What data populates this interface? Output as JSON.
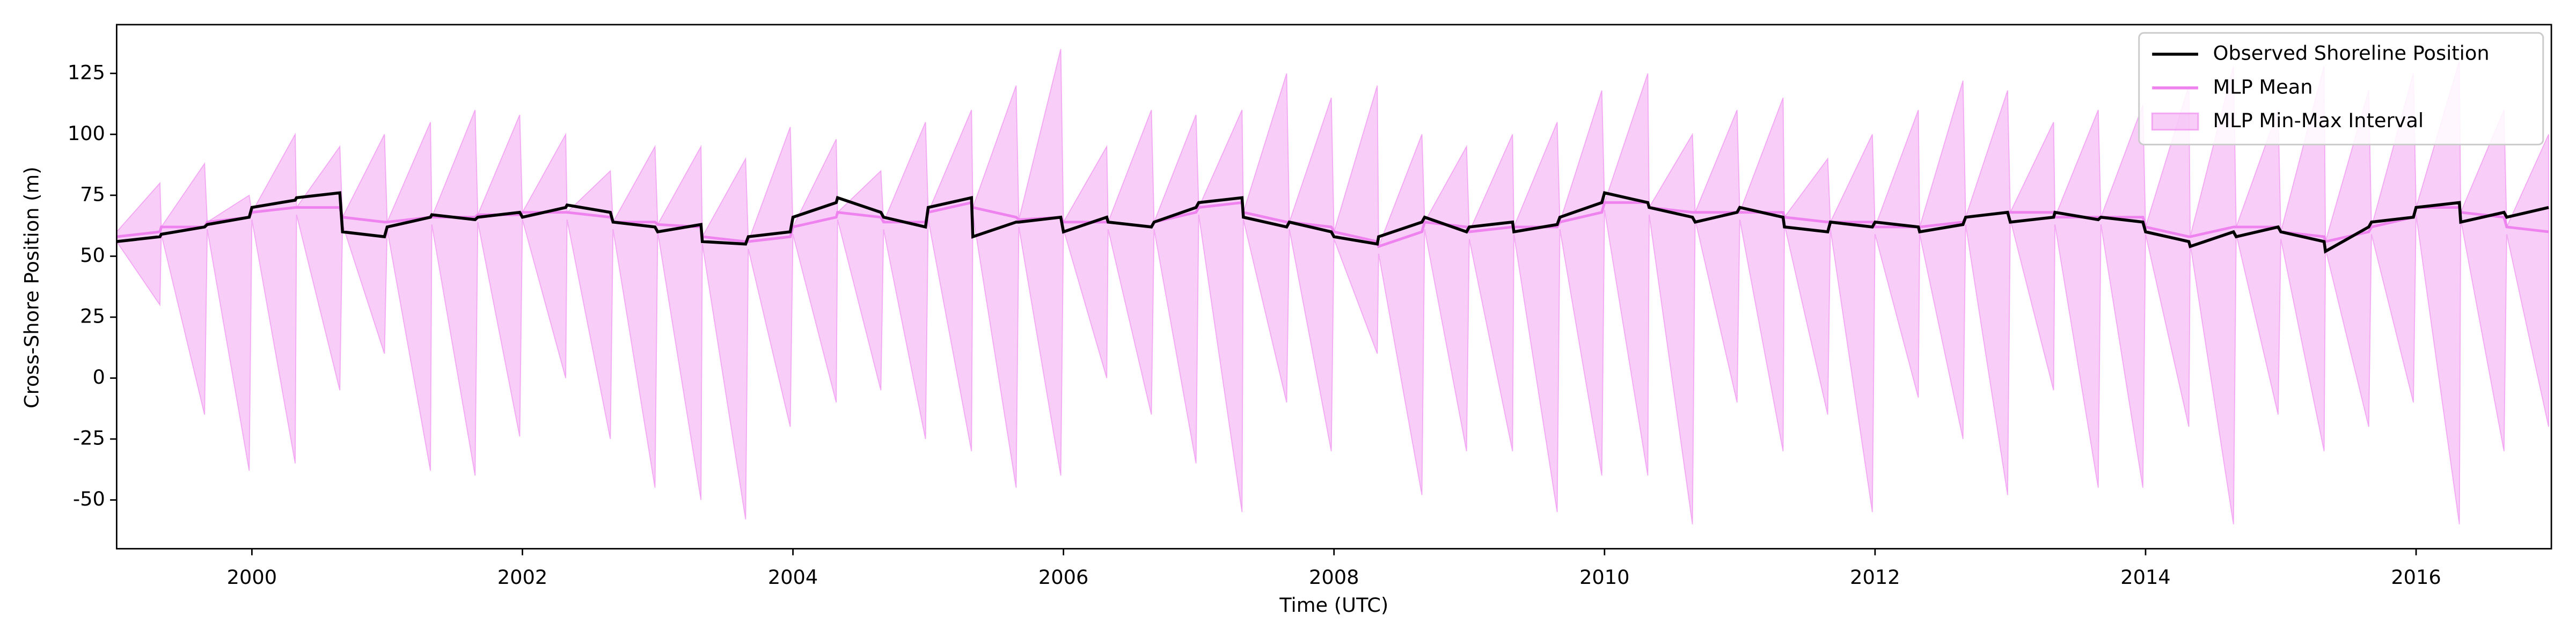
{
  "chart_data": {
    "type": "line",
    "xlabel": "Time (UTC)",
    "ylabel": "Cross-Shore Position (m)",
    "x": [
      1999.0,
      1999.32,
      1999.33,
      1999.65,
      1999.67,
      1999.98,
      2000.0,
      2000.32,
      2000.33,
      2000.65,
      2000.67,
      2000.98,
      2001.0,
      2001.32,
      2001.33,
      2001.65,
      2001.67,
      2001.98,
      2002.0,
      2002.32,
      2002.33,
      2002.65,
      2002.67,
      2002.98,
      2003.0,
      2003.32,
      2003.33,
      2003.65,
      2003.67,
      2003.98,
      2004.0,
      2004.32,
      2004.33,
      2004.65,
      2004.67,
      2004.98,
      2005.0,
      2005.32,
      2005.33,
      2005.65,
      2005.67,
      2005.98,
      2006.0,
      2006.32,
      2006.33,
      2006.65,
      2006.67,
      2006.98,
      2007.0,
      2007.32,
      2007.33,
      2007.65,
      2007.67,
      2007.98,
      2008.0,
      2008.32,
      2008.33,
      2008.65,
      2008.67,
      2008.98,
      2009.0,
      2009.32,
      2009.33,
      2009.65,
      2009.67,
      2009.98,
      2010.0,
      2010.32,
      2010.33,
      2010.65,
      2010.67,
      2010.98,
      2011.0,
      2011.32,
      2011.33,
      2011.65,
      2011.67,
      2011.98,
      2012.0,
      2012.32,
      2012.33,
      2012.65,
      2012.67,
      2012.98,
      2013.0,
      2013.32,
      2013.33,
      2013.65,
      2013.67,
      2013.98,
      2014.0,
      2014.32,
      2014.33,
      2014.65,
      2014.67,
      2014.98,
      2015.0,
      2015.32,
      2015.33,
      2015.65,
      2015.67,
      2015.98,
      2016.0,
      2016.32,
      2016.33,
      2016.65,
      2016.67,
      2016.98
    ],
    "interval": {
      "name": "MLP Min-Max Interval",
      "color": "#ee82ee",
      "upper": [
        60,
        80,
        62,
        88,
        64,
        75,
        68,
        100,
        70,
        95,
        66,
        100,
        64,
        105,
        66,
        110,
        67,
        108,
        68,
        100,
        68,
        85,
        64,
        95,
        63,
        95,
        58,
        90,
        56,
        103,
        62,
        98,
        68,
        85,
        64,
        105,
        68,
        110,
        70,
        120,
        65,
        135,
        64,
        95,
        64,
        110,
        64,
        108,
        70,
        110,
        68,
        125,
        64,
        115,
        60,
        120,
        54,
        100,
        64,
        95,
        60,
        100,
        62,
        105,
        64,
        118,
        72,
        125,
        70,
        100,
        68,
        110,
        68,
        115,
        66,
        90,
        64,
        100,
        62,
        110,
        62,
        122,
        66,
        118,
        68,
        105,
        66,
        110,
        66,
        112,
        62,
        120,
        58,
        128,
        62,
        110,
        60,
        128,
        56,
        118,
        62,
        125,
        70,
        130,
        68,
        110,
        62,
        100
      ],
      "lower": [
        56,
        30,
        59,
        -15,
        61,
        -38,
        65,
        -35,
        67,
        -5,
        63,
        10,
        61,
        -38,
        63,
        -40,
        64,
        -24,
        65,
        0,
        65,
        -25,
        61,
        -45,
        60,
        -50,
        55,
        -58,
        53,
        -20,
        59,
        -10,
        65,
        -5,
        61,
        -25,
        65,
        -30,
        67,
        -45,
        62,
        -40,
        61,
        0,
        61,
        -15,
        61,
        -35,
        67,
        -55,
        65,
        -10,
        61,
        -30,
        57,
        10,
        51,
        -48,
        61,
        -30,
        57,
        -30,
        59,
        -55,
        61,
        -40,
        69,
        -40,
        67,
        -60,
        65,
        -10,
        65,
        -30,
        63,
        -15,
        61,
        -55,
        59,
        -8,
        59,
        -25,
        63,
        -48,
        65,
        -5,
        63,
        -45,
        63,
        -45,
        59,
        -20,
        55,
        -60,
        59,
        -15,
        57,
        -30,
        53,
        -20,
        59,
        -10,
        67,
        -60,
        65,
        -30,
        59,
        -20
      ]
    },
    "series": [
      {
        "name": "Observed Shoreline Position",
        "color": "#000000",
        "values": [
          56,
          58,
          59,
          62,
          63,
          66,
          70,
          73,
          74,
          76,
          60,
          58,
          62,
          66,
          67,
          65,
          66,
          68,
          66,
          70,
          71,
          68,
          64,
          62,
          60,
          63,
          56,
          55,
          58,
          60,
          66,
          72,
          74,
          68,
          66,
          62,
          70,
          74,
          58,
          64,
          64,
          66,
          60,
          66,
          64,
          62,
          64,
          70,
          72,
          74,
          66,
          62,
          64,
          60,
          58,
          55,
          58,
          64,
          66,
          60,
          62,
          64,
          60,
          63,
          66,
          72,
          76,
          72,
          70,
          66,
          64,
          68,
          70,
          66,
          62,
          60,
          64,
          62,
          64,
          62,
          60,
          63,
          66,
          68,
          64,
          66,
          68,
          65,
          66,
          64,
          60,
          56,
          54,
          60,
          58,
          62,
          60,
          56,
          52,
          62,
          64,
          66,
          70,
          72,
          64,
          68,
          66,
          70
        ]
      },
      {
        "name": "MLP Mean",
        "color": "#ee82ee",
        "values": [
          58,
          60,
          62,
          62,
          64,
          66,
          68,
          70,
          70,
          70,
          66,
          64,
          64,
          66,
          66,
          66,
          67,
          67,
          68,
          68,
          68,
          66,
          64,
          64,
          63,
          62,
          58,
          56,
          56,
          58,
          62,
          66,
          68,
          66,
          64,
          64,
          68,
          72,
          70,
          66,
          65,
          66,
          64,
          64,
          64,
          62,
          64,
          68,
          70,
          72,
          68,
          64,
          64,
          62,
          60,
          56,
          54,
          60,
          64,
          62,
          60,
          62,
          62,
          62,
          64,
          68,
          72,
          72,
          70,
          68,
          68,
          68,
          68,
          68,
          66,
          64,
          64,
          64,
          62,
          62,
          62,
          64,
          66,
          68,
          68,
          68,
          66,
          66,
          66,
          66,
          62,
          58,
          58,
          62,
          62,
          62,
          60,
          58,
          56,
          60,
          62,
          66,
          70,
          70,
          68,
          66,
          62,
          60
        ]
      }
    ],
    "xlim": [
      1999.0,
      2017.0
    ],
    "xticks": [
      2000,
      2002,
      2004,
      2006,
      2008,
      2010,
      2012,
      2014,
      2016
    ],
    "ylim": [
      -70,
      145
    ],
    "yticks": [
      -50,
      -25,
      0,
      25,
      50,
      75,
      100,
      125
    ],
    "legend": "upper right"
  }
}
